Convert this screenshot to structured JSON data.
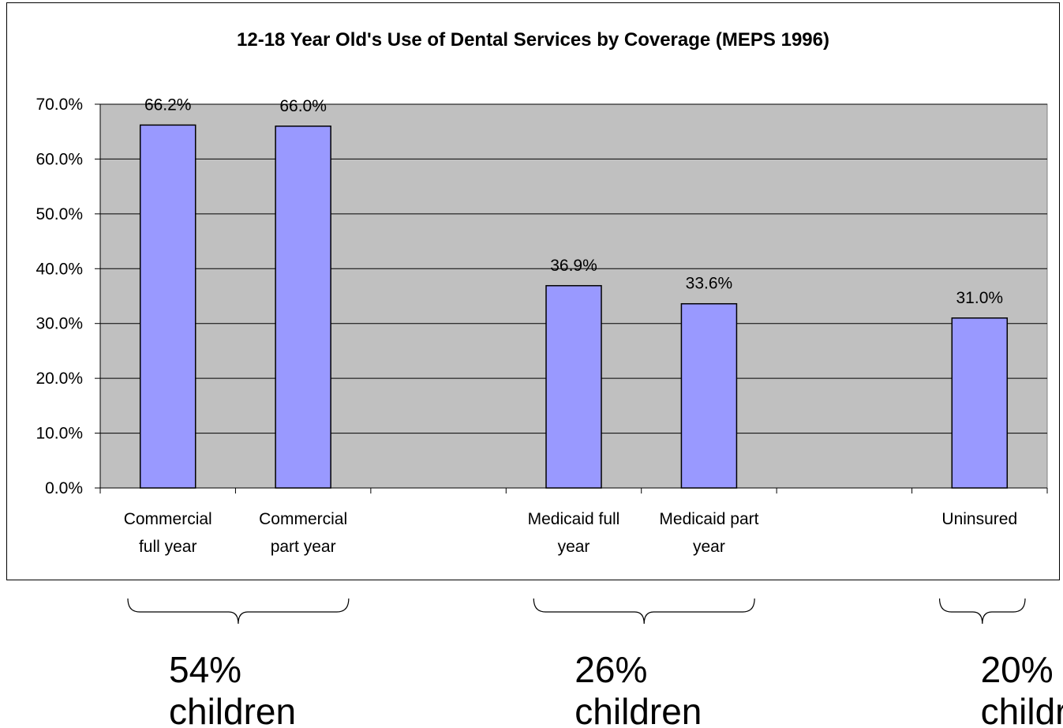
{
  "chart_data": {
    "type": "bar",
    "title": "12-18 Year Old's Use of Dental Services by Coverage (MEPS 1996)",
    "categories": [
      [
        "Commercial",
        "full year"
      ],
      [
        "Commercial",
        "part year"
      ],
      [
        "",
        ""
      ],
      [
        "Medicaid full",
        "year"
      ],
      [
        "Medicaid part",
        "year"
      ],
      [
        "",
        ""
      ],
      [
        "Uninsured",
        ""
      ]
    ],
    "values": [
      66.2,
      66.0,
      null,
      36.9,
      33.6,
      null,
      31.0
    ],
    "data_labels": [
      "66.2%",
      "66.0%",
      "",
      "36.9%",
      "33.6%",
      "",
      "31.0%"
    ],
    "y_ticks": [
      "0.0%",
      "10.0%",
      "20.0%",
      "30.0%",
      "40.0%",
      "50.0%",
      "60.0%",
      "70.0%"
    ],
    "ylim": [
      0,
      70
    ],
    "xlabel": "",
    "ylabel": "",
    "grid": true,
    "colors": {
      "bar": "#9999ff",
      "plot_bg": "#c0c0c0",
      "bar_border": "#000000"
    },
    "annotations": [
      {
        "bracket_over": [
          0,
          1
        ],
        "lines": [
          "54%",
          "children"
        ]
      },
      {
        "bracket_over": [
          3,
          4
        ],
        "lines": [
          "26%",
          "children"
        ]
      },
      {
        "bracket_over": [
          6,
          6
        ],
        "lines": [
          "20%",
          "children"
        ]
      }
    ]
  }
}
